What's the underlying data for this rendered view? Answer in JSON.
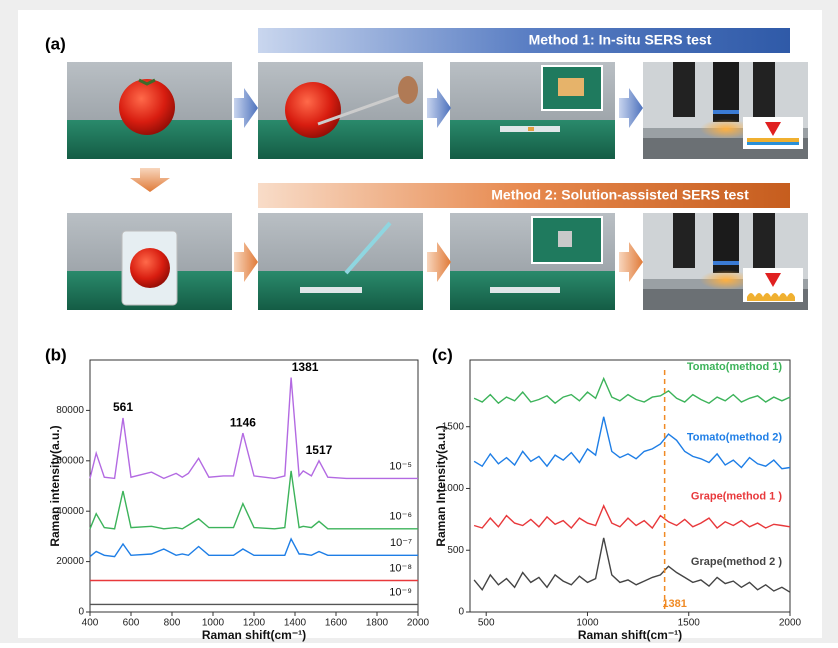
{
  "panels": [
    "(a)",
    "(b)",
    "(c)"
  ],
  "banners": [
    "Method 1: In-situ SERS test",
    "Method 2: Solution-assisted SERS test"
  ],
  "chart_data": [
    {
      "type": "line",
      "x_label": "Raman shift(cm⁻¹)",
      "y_label": "Raman intensity(a.u.)",
      "xlim": [
        400,
        2000
      ],
      "xticks": [
        400,
        600,
        800,
        1000,
        1200,
        1400,
        1600,
        1800,
        2000
      ],
      "ylim": [
        0,
        100000
      ],
      "yticks": [
        0,
        20000,
        40000,
        60000,
        80000
      ],
      "peaks": [
        561,
        1146,
        1381,
        1517
      ],
      "x": [
        400,
        430,
        470,
        520,
        561,
        600,
        700,
        760,
        820,
        850,
        880,
        930,
        980,
        1050,
        1100,
        1146,
        1200,
        1300,
        1350,
        1381,
        1420,
        1440,
        1480,
        1517,
        1560,
        1650,
        1800,
        2000
      ],
      "series": [
        {
          "name": "10⁻⁵",
          "color": "#b36ae2",
          "values": [
            53000,
            63000,
            53500,
            53000,
            77000,
            53500,
            55500,
            53000,
            55000,
            53500,
            55000,
            61000,
            53500,
            54000,
            54000,
            71000,
            54000,
            53000,
            54000,
            93000,
            54000,
            56000,
            54000,
            60000,
            53500,
            53000,
            53000,
            53000
          ]
        },
        {
          "name": "10⁻⁶",
          "color": "#3cb35a",
          "values": [
            33000,
            39000,
            33500,
            33000,
            48000,
            33500,
            34000,
            33000,
            33500,
            33000,
            34500,
            37000,
            33500,
            33500,
            33500,
            43000,
            33500,
            33000,
            33500,
            56000,
            33500,
            34000,
            33500,
            36000,
            33000,
            33000,
            33000,
            33000
          ]
        },
        {
          "name": "10⁻⁷",
          "color": "#1e7ee6",
          "values": [
            22000,
            24000,
            22500,
            22000,
            27000,
            22500,
            23000,
            25000,
            22500,
            23000,
            22500,
            26000,
            22500,
            22500,
            22500,
            25000,
            22500,
            22500,
            22500,
            29000,
            23000,
            23000,
            22500,
            24000,
            22500,
            22500,
            22500,
            22500
          ]
        },
        {
          "name": "10⁻⁸",
          "color": "#e8383b",
          "values": [
            12500,
            12500,
            12500,
            12500,
            12500,
            12500,
            12500,
            12500,
            12500,
            12500,
            12500,
            12500,
            12500,
            12500,
            12500,
            12500,
            12500,
            12500,
            12500,
            12500,
            12500,
            12500,
            12500,
            12500,
            12500,
            12500,
            12500,
            12500
          ]
        },
        {
          "name": "10⁻⁹",
          "color": "#555555",
          "values": [
            3000,
            3000,
            3000,
            3000,
            3000,
            3000,
            3000,
            3000,
            3000,
            3000,
            3000,
            3000,
            3000,
            3000,
            3000,
            3000,
            3000,
            3000,
            3000,
            3000,
            3000,
            3000,
            3000,
            3000,
            3000,
            3000,
            3000,
            3000
          ]
        }
      ]
    },
    {
      "type": "line",
      "x_label": "Raman shift(cm⁻¹)",
      "y_label": "Raman Intensity(a.u.)",
      "xlim": [
        420,
        2000
      ],
      "xticks": [
        500,
        1000,
        1500,
        2000
      ],
      "ylim": [
        0,
        2040
      ],
      "yticks": [
        0,
        500,
        1000,
        1500
      ],
      "marker": 1381,
      "marker_color": "#f08a24",
      "x": [
        440,
        480,
        520,
        560,
        600,
        640,
        680,
        720,
        760,
        800,
        840,
        880,
        920,
        960,
        1000,
        1040,
        1080,
        1120,
        1160,
        1200,
        1240,
        1280,
        1320,
        1360,
        1400,
        1440,
        1480,
        1520,
        1560,
        1600,
        1640,
        1680,
        1720,
        1760,
        1800,
        1840,
        1880,
        1920,
        1960,
        2000
      ],
      "series": [
        {
          "name": "Tomato(method 1)",
          "color": "#3cb35a",
          "values": [
            1730,
            1700,
            1760,
            1690,
            1740,
            1710,
            1780,
            1700,
            1720,
            1750,
            1690,
            1740,
            1760,
            1710,
            1780,
            1730,
            1890,
            1740,
            1710,
            1760,
            1720,
            1700,
            1740,
            1750,
            1790,
            1730,
            1700,
            1760,
            1720,
            1690,
            1740,
            1710,
            1760,
            1700,
            1730,
            1750,
            1700,
            1740,
            1710,
            1740
          ]
        },
        {
          "name": "Tomato(method 2)",
          "color": "#1e7ee6",
          "values": [
            1220,
            1180,
            1280,
            1200,
            1250,
            1190,
            1300,
            1220,
            1260,
            1180,
            1270,
            1230,
            1290,
            1210,
            1320,
            1270,
            1580,
            1300,
            1250,
            1280,
            1240,
            1300,
            1320,
            1360,
            1440,
            1390,
            1300,
            1260,
            1240,
            1210,
            1280,
            1190,
            1230,
            1170,
            1250,
            1200,
            1180,
            1230,
            1160,
            1170
          ]
        },
        {
          "name": "Grape(method 1 )",
          "color": "#e8383b",
          "values": [
            700,
            680,
            760,
            690,
            780,
            720,
            700,
            750,
            690,
            770,
            710,
            740,
            680,
            760,
            720,
            700,
            860,
            720,
            690,
            760,
            700,
            740,
            680,
            780,
            730,
            700,
            750,
            690,
            720,
            760,
            680,
            730,
            700,
            740,
            690,
            720,
            680,
            710,
            700,
            690
          ]
        },
        {
          "name": "Grape(method 2 )",
          "color": "#444444",
          "values": [
            260,
            180,
            300,
            220,
            270,
            200,
            320,
            240,
            280,
            200,
            300,
            250,
            220,
            290,
            240,
            270,
            600,
            300,
            240,
            260,
            220,
            250,
            280,
            300,
            370,
            320,
            280,
            240,
            260,
            210,
            280,
            230,
            250,
            200,
            240,
            180,
            220,
            170,
            200,
            160
          ]
        }
      ]
    }
  ]
}
